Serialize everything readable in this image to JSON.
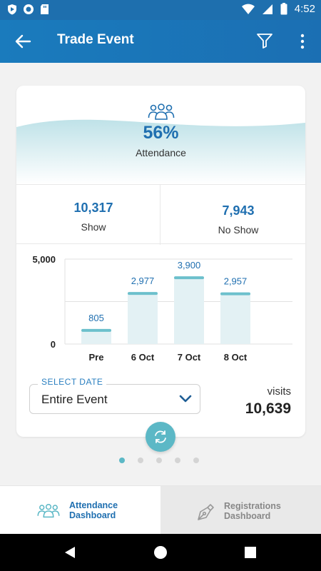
{
  "status_bar": {
    "time": "4:52"
  },
  "app_bar": {
    "title": "Trade Event"
  },
  "attendance": {
    "percent": "56%",
    "label": "Attendance"
  },
  "stats": {
    "show": {
      "value": "10,317",
      "label": "Show"
    },
    "no_show": {
      "value": "7,943",
      "label": "No Show"
    }
  },
  "chart_data": {
    "type": "bar",
    "categories": [
      "Pre",
      "6 Oct",
      "7 Oct",
      "8 Oct"
    ],
    "values": [
      805,
      2977,
      3900,
      2957
    ],
    "value_labels": [
      "805",
      "2,977",
      "3,900",
      "2,957"
    ],
    "yticks": [
      "5,000",
      "0"
    ],
    "ylim": [
      0,
      5000
    ],
    "title": "",
    "xlabel": "",
    "ylabel": "",
    "colors": {
      "bar_fill": "#e3f1f4",
      "bar_cap": "#6cc0cc",
      "label": "#1f6fb0"
    }
  },
  "select_date": {
    "caption": "SELECT DATE",
    "value": "Entire Event"
  },
  "visits": {
    "label": "visits",
    "value": "10,639"
  },
  "pager": {
    "count": 5,
    "active": 0
  },
  "tabs": [
    {
      "line1": "Attendance",
      "line2": "Dashboard",
      "icon": "people-icon",
      "active": true
    },
    {
      "line1": "Registrations",
      "line2": "Dashboard",
      "icon": "pen-icon",
      "active": false
    }
  ],
  "colors": {
    "primary": "#1e6fae",
    "accent": "#5cb8c6",
    "text_blue": "#1f6fb0"
  }
}
